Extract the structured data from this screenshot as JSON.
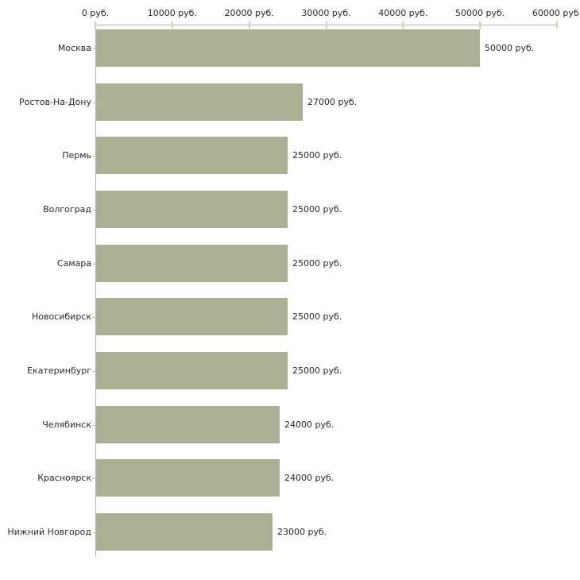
{
  "chart_data": {
    "type": "bar",
    "orientation": "horizontal",
    "title": "",
    "xlabel": "",
    "ylabel": "",
    "unit": "руб.",
    "categories": [
      "Москва",
      "Ростов-На-Дону",
      "Пермь",
      "Волгоград",
      "Самара",
      "Новосибирск",
      "Екатеринбург",
      "Челябинск",
      "Красноярск",
      "Нижний Новгород"
    ],
    "values": [
      50000,
      27000,
      25000,
      25000,
      25000,
      25000,
      25000,
      24000,
      24000,
      23000
    ],
    "value_labels": [
      "50000 руб.",
      "27000 руб.",
      "25000 руб.",
      "25000 руб.",
      "25000 руб.",
      "25000 руб.",
      "25000 руб.",
      "24000 руб.",
      "24000 руб.",
      "23000 руб."
    ],
    "x_ticks": [
      0,
      10000,
      20000,
      30000,
      40000,
      50000,
      60000
    ],
    "x_tick_labels": [
      "0 руб.",
      "10000 руб.",
      "20000 руб.",
      "30000 руб.",
      "40000 руб.",
      "50000 руб.",
      "60000 руб."
    ],
    "xlim": [
      0,
      60000
    ],
    "x_axis_position": "top",
    "grid": false,
    "legend": null,
    "colors": {
      "bar": "#abb095",
      "axis_line": "#b3b3b3",
      "tick_mark": "#cfd2b2",
      "text": "#2a2a2a",
      "background": "#ffffff"
    }
  }
}
